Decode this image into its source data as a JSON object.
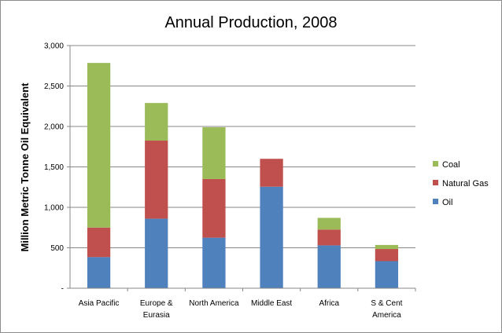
{
  "chart_data": {
    "type": "bar",
    "stacked": true,
    "title": "Annual Production, 2008",
    "ylabel": "Million Metric Tonne Oil Equivalent",
    "xlabel": "",
    "ylim": [
      0,
      3000
    ],
    "y_ticks": [
      0,
      500,
      1000,
      1500,
      2000,
      2500,
      3000
    ],
    "y_tick_labels": [
      "-",
      "500",
      "1,000",
      "1,500",
      "2,000",
      "2,500",
      "3,000"
    ],
    "grid": true,
    "legend_position": "right",
    "categories": [
      [
        "Asia Pacific"
      ],
      [
        "Europe &",
        "Eurasia"
      ],
      [
        "North America"
      ],
      [
        "Middle East"
      ],
      [
        "Africa"
      ],
      [
        "S & Cent",
        "America"
      ]
    ],
    "series": [
      {
        "name": "Oil",
        "color": "#4f81bd",
        "values": [
          385,
          860,
          625,
          1255,
          530,
          335
        ]
      },
      {
        "name": "Natural Gas",
        "color": "#c0504d",
        "values": [
          365,
          965,
          725,
          345,
          195,
          150
        ]
      },
      {
        "name": "Coal",
        "color": "#9bbb59",
        "values": [
          2035,
          465,
          640,
          0,
          145,
          50
        ]
      }
    ]
  }
}
